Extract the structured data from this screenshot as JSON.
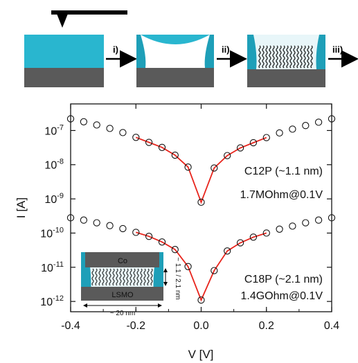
{
  "schematic": {
    "steps": [
      "i)",
      "ii)",
      "iii)"
    ]
  },
  "inset": {
    "top_label": "Co",
    "bottom_label": "LSMO",
    "height_label": "~ 1.1 / 2.1 nm",
    "width_label": "~ 20 nm"
  },
  "chart_data": {
    "type": "scatter",
    "xlabel": "V [V]",
    "ylabel": "I [A]",
    "xlim": [
      -0.4,
      0.4
    ],
    "ylim": [
      5e-13,
      6e-07
    ],
    "yscale": "log",
    "xticks": [
      "-0.4",
      "-0.2",
      "0.0",
      "0.2",
      "0.4"
    ],
    "yticks": [
      {
        "base": "10",
        "exp": "-7"
      },
      {
        "base": "10",
        "exp": "-8"
      },
      {
        "base": "10",
        "exp": "-9"
      },
      {
        "base": "10",
        "exp": "-10"
      },
      {
        "base": "10",
        "exp": "-11"
      },
      {
        "base": "10",
        "exp": "-12"
      }
    ],
    "colors": {
      "data": "#111111",
      "fit": "#e8241c",
      "cyan": "#29b6cf",
      "substrate": "#5a5a5a"
    },
    "annotations": [
      {
        "text": "C12P (~1.1 nm)",
        "series": "C12P"
      },
      {
        "text": "1.7MOhm@0.1V",
        "series": "C12P"
      },
      {
        "text": "C18P (~2.1 nm)",
        "series": "C18P"
      },
      {
        "text": "1.4GOhm@0.1V",
        "series": "C18P"
      }
    ],
    "series": [
      {
        "name": "C12P",
        "marker": "open-circle",
        "x": [
          -0.4,
          -0.36,
          -0.32,
          -0.28,
          -0.24,
          -0.2,
          -0.16,
          -0.12,
          -0.08,
          -0.04,
          0.0,
          0.04,
          0.08,
          0.12,
          0.16,
          0.2,
          0.24,
          0.28,
          0.32,
          0.36,
          0.4
        ],
        "y": [
          2.2e-07,
          1.8e-07,
          1.45e-07,
          1.15e-07,
          8.7e-08,
          6.3e-08,
          4.5e-08,
          3.2e-08,
          1.9e-08,
          8.5e-09,
          8e-10,
          8e-09,
          1.85e-08,
          3.1e-08,
          4.4e-08,
          6.2e-08,
          8.5e-08,
          1.1e-07,
          1.4e-07,
          1.75e-07,
          2.2e-07
        ],
        "fit_range": [
          -0.2,
          0.2
        ]
      },
      {
        "name": "C18P",
        "marker": "open-circle",
        "x": [
          -0.4,
          -0.36,
          -0.32,
          -0.28,
          -0.24,
          -0.2,
          -0.16,
          -0.12,
          -0.08,
          -0.04,
          0.0,
          0.04,
          0.08,
          0.12,
          0.16,
          0.2,
          0.24,
          0.28,
          0.32,
          0.36,
          0.4
        ],
        "y": [
          2.8e-10,
          2.4e-10,
          2e-10,
          1.65e-10,
          1.35e-10,
          1.05e-10,
          8e-11,
          5.5e-11,
          3.3e-11,
          1.05e-11,
          1.1e-12,
          8e-12,
          3e-11,
          5.2e-11,
          7.6e-11,
          1e-10,
          1.3e-10,
          1.6e-10,
          2e-10,
          2.4e-10,
          2.8e-10
        ],
        "fit_range": [
          -0.2,
          0.2
        ]
      }
    ]
  }
}
